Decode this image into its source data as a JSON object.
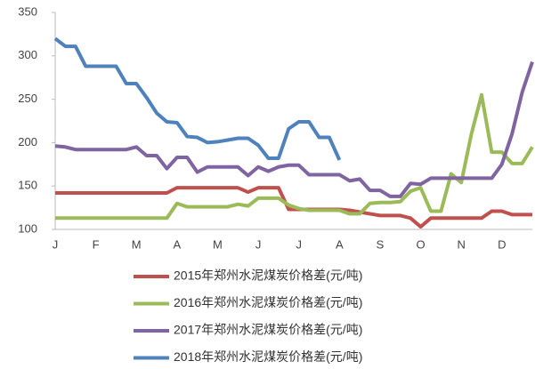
{
  "chart_data": {
    "type": "line",
    "categories": [
      "J",
      null,
      null,
      null,
      "F",
      null,
      null,
      null,
      "M",
      null,
      null,
      null,
      "A",
      null,
      null,
      null,
      "M",
      null,
      null,
      null,
      "J",
      null,
      null,
      null,
      "J",
      null,
      null,
      null,
      "A",
      null,
      null,
      null,
      "S",
      null,
      null,
      null,
      "O",
      null,
      null,
      null,
      "N",
      null,
      null,
      null,
      "D",
      null,
      null,
      null
    ],
    "series": [
      {
        "name": "2015年郑州水泥煤炭价格差(元/吨)",
        "color": "#c0504d",
        "values": [
          142,
          142,
          142,
          142,
          142,
          142,
          142,
          142,
          142,
          142,
          142,
          142,
          148,
          148,
          148,
          148,
          148,
          148,
          148,
          143,
          148,
          148,
          148,
          123,
          123,
          123,
          123,
          123,
          123,
          122,
          120,
          118,
          116,
          116,
          116,
          113,
          103,
          113,
          113,
          113,
          113,
          113,
          113,
          121,
          121,
          117,
          117,
          117
        ]
      },
      {
        "name": "2016年郑州水泥煤炭价格差(元/吨)",
        "color": "#9bbb59",
        "values": [
          113,
          113,
          113,
          113,
          113,
          113,
          113,
          113,
          113,
          113,
          113,
          113,
          130,
          126,
          126,
          126,
          126,
          126,
          129,
          127,
          136,
          136,
          136,
          128,
          124,
          122,
          122,
          122,
          122,
          118,
          118,
          130,
          131,
          131,
          132,
          144,
          148,
          121,
          121,
          164,
          154,
          210,
          255,
          189,
          189,
          176,
          176,
          195
        ]
      },
      {
        "name": "2017年郑州水泥煤炭价格差(元/吨)",
        "color": "#8064a2",
        "values": [
          196,
          195,
          192,
          192,
          192,
          192,
          192,
          192,
          195,
          185,
          185,
          170,
          183,
          183,
          166,
          172,
          172,
          172,
          172,
          162,
          172,
          167,
          172,
          174,
          174,
          163,
          163,
          163,
          163,
          156,
          158,
          145,
          145,
          138,
          138,
          153,
          152,
          159,
          159,
          159,
          159,
          159,
          159,
          159,
          175,
          210,
          258,
          293
        ]
      },
      {
        "name": "2018年郑州水泥煤炭价格差(元/吨)",
        "color": "#4f81bd",
        "values": [
          320,
          311,
          311,
          288,
          288,
          288,
          288,
          268,
          268,
          252,
          234,
          224,
          223,
          207,
          206,
          200,
          201,
          203,
          205,
          205,
          197,
          182,
          182,
          216,
          224,
          224,
          206,
          206,
          180,
          null,
          null,
          null,
          null,
          null,
          null,
          null,
          null,
          null,
          null,
          null,
          null,
          null,
          null,
          null,
          null,
          null,
          null,
          null
        ]
      }
    ],
    "ylim": [
      100,
      350
    ],
    "yticks": [
      100,
      150,
      200,
      250,
      300,
      350
    ],
    "grid": false
  }
}
